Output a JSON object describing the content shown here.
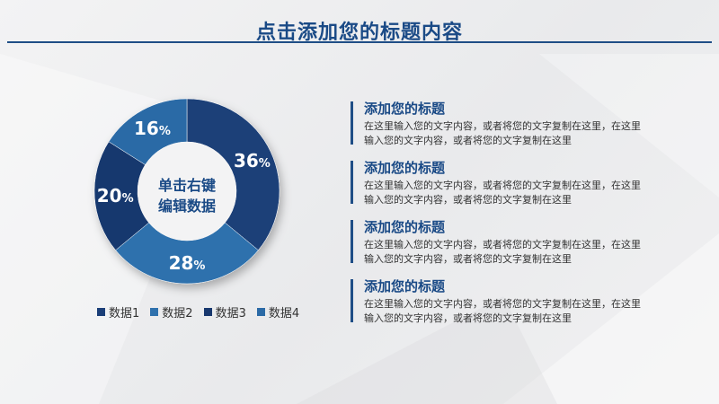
{
  "page": {
    "title": "点击添加您的标题内容"
  },
  "chart_data": {
    "type": "pie",
    "center_label": [
      "单击右键",
      "编辑数据"
    ],
    "categories": [
      "数据1",
      "数据2",
      "数据3",
      "数据4"
    ],
    "values": [
      36,
      28,
      20,
      16
    ],
    "unit": "%",
    "colors": [
      "#1b3f78",
      "#2f71ad",
      "#18386e",
      "#2b6aa6"
    ]
  },
  "items": [
    {
      "heading": "添加您的标题",
      "body": "在这里输入您的文字内容，或者将您的文字复制在这里，在这里输入您的文字内容，或者将您的文字复制在这里"
    },
    {
      "heading": "添加您的标题",
      "body": "在这里输入您的文字内容，或者将您的文字复制在这里，在这里输入您的文字内容，或者将您的文字复制在这里"
    },
    {
      "heading": "添加您的标题",
      "body": "在这里输入您的文字内容，或者将您的文字复制在这里，在这里输入您的文字内容，或者将您的文字复制在这里"
    },
    {
      "heading": "添加您的标题",
      "body": "在这里输入您的文字内容，或者将您的文字复制在这里，在这里输入您的文字内容，或者将您的文字复制在这里"
    }
  ]
}
